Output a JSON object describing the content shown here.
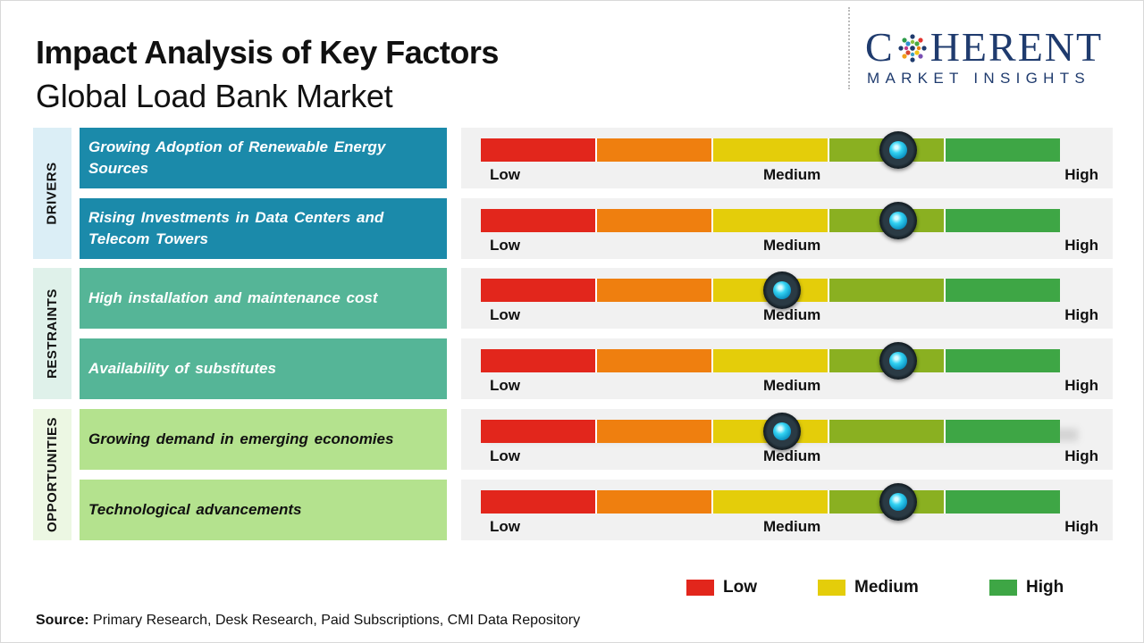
{
  "header": {
    "title": "Impact Analysis of Key Factors",
    "subtitle": "Global Load Bank Market"
  },
  "logo": {
    "main_before": "C",
    "main_after": "HERENT",
    "sub": "MARKET INSIGHTS"
  },
  "colors": {
    "low": "#e2261c",
    "medium": "#e4cd0a",
    "high": "#3ea645",
    "drivers": "#1b8aaa",
    "restraints": "#55b597",
    "opportunities": "#b4e28e"
  },
  "chart_data": {
    "type": "gauge",
    "title": "Impact Analysis of Key Factors",
    "subtitle": "Global Load Bank Market",
    "scale": {
      "min": 0,
      "max": 5,
      "labels": [
        "Low",
        "Medium",
        "High"
      ]
    },
    "categories": [
      {
        "name": "DRIVERS",
        "factors": [
          {
            "label": "Growing Adoption of Renewable Energy Sources",
            "value": 3.6
          },
          {
            "label": "Rising Investments in Data Centers and Telecom Towers",
            "value": 3.6
          }
        ]
      },
      {
        "name": "RESTRAINTS",
        "factors": [
          {
            "label": "High installation and maintenance cost",
            "value": 2.6
          },
          {
            "label": "Availability of substitutes",
            "value": 3.6
          }
        ]
      },
      {
        "name": "OPPORTUNITIES",
        "factors": [
          {
            "label": "Growing demand in emerging economies",
            "value": 2.6
          },
          {
            "label": "Technological advancements",
            "value": 3.6
          }
        ]
      }
    ],
    "legend": [
      "Low",
      "Medium",
      "High"
    ]
  },
  "gauge_labels": {
    "low": "Low",
    "medium": "Medium",
    "high": "High"
  },
  "legend": {
    "low": "Low",
    "medium": "Medium",
    "high": "High"
  },
  "source": {
    "label": "Source:",
    "text": " Primary Research, Desk Research, Paid Subscriptions, CMI Data Repository"
  }
}
